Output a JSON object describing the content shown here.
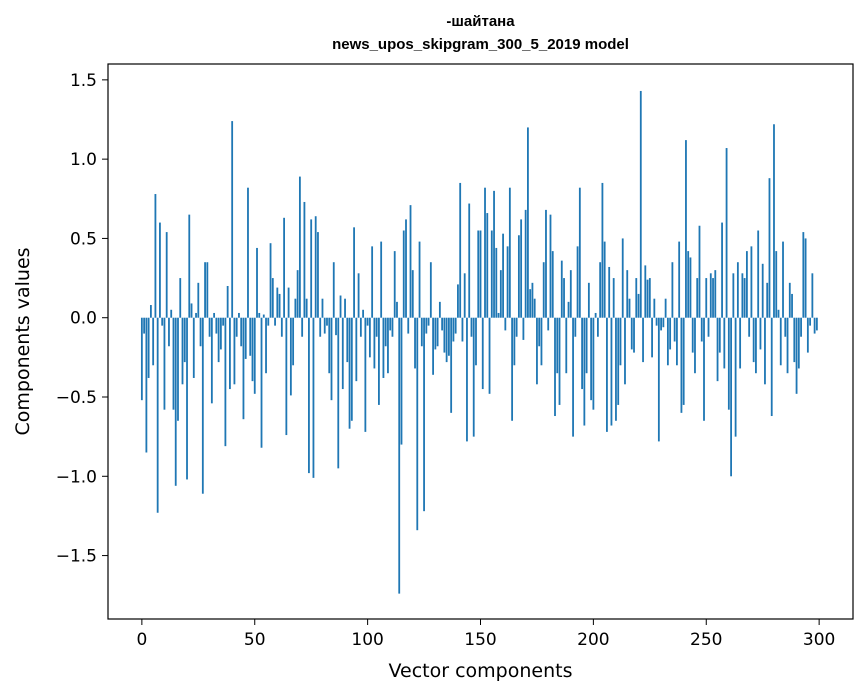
{
  "chart_data": {
    "type": "bar",
    "title_line1": "-шайтана",
    "title_line2": "news_upos_skipgram_300_5_2019 model",
    "xlabel": "Vector components",
    "ylabel": "Components values",
    "xlim": [
      -15,
      315
    ],
    "ylim": [
      -1.9,
      1.6
    ],
    "xticks": [
      0,
      50,
      100,
      150,
      200,
      250,
      300
    ],
    "xtick_labels": [
      "0",
      "50",
      "100",
      "150",
      "200",
      "250",
      "300"
    ],
    "yticks": [
      -1.5,
      -1.0,
      -0.5,
      0.0,
      0.5,
      1.0,
      1.5
    ],
    "ytick_labels": [
      "−1.5",
      "−1.0",
      "−0.5",
      "0.0",
      "0.5",
      "1.0",
      "1.5"
    ],
    "bar_color": "#1f77b4",
    "grid": false,
    "values": [
      -0.52,
      -0.1,
      -0.85,
      -0.38,
      0.08,
      -0.3,
      0.78,
      -1.23,
      0.6,
      -0.05,
      -0.58,
      0.54,
      -0.18,
      0.05,
      -0.58,
      -1.06,
      -0.65,
      0.25,
      -0.42,
      -0.28,
      -1.02,
      0.65,
      0.09,
      -0.38,
      0.03,
      0.22,
      -0.18,
      -1.11,
      0.35,
      0.35,
      -0.12,
      -0.54,
      0.03,
      -0.1,
      -0.28,
      -0.2,
      -0.05,
      -0.81,
      0.2,
      -0.45,
      1.24,
      -0.42,
      -0.12,
      0.03,
      -0.18,
      -0.64,
      -0.26,
      0.82,
      -0.24,
      -0.4,
      -0.48,
      0.44,
      0.03,
      -0.82,
      0.02,
      -0.35,
      -0.05,
      0.47,
      0.25,
      -0.05,
      0.19,
      0.15,
      -0.12,
      0.63,
      -0.74,
      0.19,
      -0.49,
      -0.3,
      0.12,
      0.3,
      0.89,
      -0.12,
      0.73,
      0.12,
      -0.98,
      0.62,
      -1.01,
      0.64,
      0.54,
      -0.12,
      0.12,
      -0.1,
      -0.05,
      -0.35,
      -0.52,
      0.35,
      -0.11,
      -0.95,
      0.14,
      -0.45,
      0.12,
      -0.28,
      -0.7,
      -0.65,
      0.57,
      -0.4,
      0.28,
      -0.12,
      0.05,
      -0.72,
      -0.05,
      -0.25,
      0.45,
      -0.32,
      -0.12,
      -0.55,
      0.48,
      -0.38,
      -0.18,
      -0.35,
      -0.08,
      -0.12,
      0.42,
      0.1,
      -1.74,
      -0.8,
      0.55,
      0.62,
      -0.1,
      0.71,
      0.3,
      -0.32,
      -1.34,
      0.48,
      -0.18,
      -1.22,
      -0.1,
      -0.05,
      0.35,
      -0.36,
      -0.2,
      -0.18,
      0.1,
      -0.08,
      -0.22,
      -0.28,
      -0.24,
      -0.6,
      -0.15,
      -0.1,
      0.21,
      0.85,
      -0.15,
      0.28,
      -0.78,
      0.72,
      -0.12,
      -0.75,
      -0.3,
      0.55,
      0.55,
      -0.45,
      0.82,
      0.66,
      -0.48,
      0.55,
      0.8,
      0.44,
      0.03,
      0.3,
      0.53,
      -0.08,
      0.45,
      0.82,
      -0.65,
      -0.3,
      -0.12,
      0.52,
      0.62,
      -0.14,
      0.68,
      1.2,
      0.18,
      0.22,
      0.12,
      -0.42,
      -0.18,
      -0.3,
      0.35,
      0.68,
      -0.08,
      0.65,
      0.42,
      -0.62,
      -0.35,
      -0.55,
      0.36,
      0.25,
      -0.35,
      0.1,
      0.3,
      -0.75,
      -0.12,
      0.45,
      0.82,
      -0.45,
      -0.68,
      -0.35,
      0.22,
      -0.52,
      -0.58,
      0.03,
      -0.12,
      0.35,
      0.85,
      0.48,
      -0.72,
      0.32,
      -0.68,
      0.25,
      -0.65,
      -0.55,
      -0.3,
      0.5,
      -0.42,
      0.3,
      0.12,
      -0.2,
      -0.22,
      0.25,
      0.15,
      1.43,
      -0.28,
      0.33,
      0.24,
      0.25,
      -0.25,
      0.12,
      -0.05,
      -0.78,
      -0.08,
      -0.06,
      0.12,
      -0.3,
      -0.2,
      0.35,
      -0.15,
      -0.3,
      0.48,
      -0.6,
      -0.55,
      1.12,
      0.42,
      0.38,
      -0.22,
      -0.35,
      0.25,
      0.58,
      -0.15,
      -0.65,
      0.25,
      -0.12,
      0.28,
      0.25,
      0.3,
      -0.4,
      -0.22,
      0.6,
      -0.32,
      1.07,
      -0.58,
      -1.0,
      0.28,
      -0.75,
      0.35,
      -0.32,
      0.28,
      0.25,
      0.42,
      -0.12,
      0.45,
      -0.28,
      -0.35,
      0.55,
      -0.2,
      0.34,
      -0.42,
      0.22,
      0.88,
      -0.62,
      1.22,
      0.42,
      0.05,
      -0.3,
      0.48,
      -0.12,
      -0.35,
      0.22,
      0.15,
      -0.28,
      -0.48,
      -0.32,
      -0.12,
      0.54,
      0.5,
      -0.22,
      -0.05,
      0.28,
      -0.1,
      -0.08
    ]
  }
}
